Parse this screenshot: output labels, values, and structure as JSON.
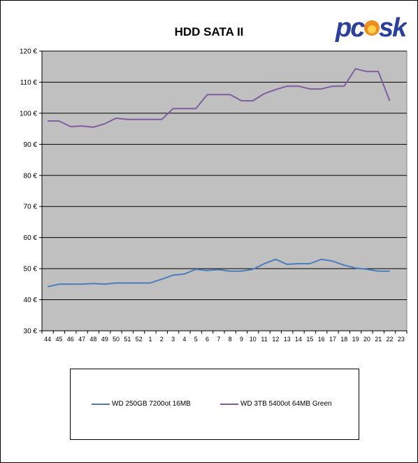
{
  "chart_data": {
    "type": "line",
    "title": "HDD SATA II",
    "categories": [
      "44",
      "45",
      "46",
      "47",
      "48",
      "49",
      "50",
      "51",
      "52",
      "1",
      "2",
      "3",
      "4",
      "5",
      "6",
      "7",
      "8",
      "9",
      "10",
      "11",
      "12",
      "13",
      "14",
      "15",
      "16",
      "17",
      "18",
      "19",
      "20",
      "21",
      "22",
      "23"
    ],
    "ylim": [
      30,
      120
    ],
    "yticks": [
      "30 €",
      "40 €",
      "50 €",
      "60 €",
      "70 €",
      "80 €",
      "90 €",
      "100 €",
      "110 €",
      "120 €"
    ],
    "grid": true,
    "legend_position": "bottom",
    "series": [
      {
        "name": "WD 250GB 7200ot 16MB",
        "color": "#4a7ebb",
        "values": [
          44.2,
          45.0,
          45.0,
          45.0,
          45.2,
          45.0,
          45.4,
          45.4,
          45.4,
          45.4,
          46.6,
          47.9,
          48.3,
          49.8,
          49.4,
          49.7,
          49.2,
          49.2,
          49.8,
          51.6,
          53.0,
          51.4,
          51.6,
          51.6,
          53.0,
          52.4,
          51.1,
          50.2,
          49.8,
          49.2,
          49.2,
          null
        ]
      },
      {
        "name": "WD 3TB 5400ot 64MB Green",
        "color": "#7d5fa0",
        "values": [
          97.5,
          97.5,
          95.7,
          95.9,
          95.5,
          96.6,
          98.4,
          98.0,
          98.0,
          98.0,
          98.0,
          101.5,
          101.5,
          101.5,
          106.0,
          106.0,
          106.0,
          104.0,
          104.0,
          106.3,
          107.6,
          108.7,
          108.7,
          107.8,
          107.8,
          108.7,
          108.7,
          114.3,
          113.4,
          113.4,
          104.0,
          null
        ]
      }
    ]
  },
  "logo": {
    "text": "pcosk",
    "color_primary": "#2b3f9e",
    "color_flame": "#f28b1e"
  },
  "colors": {
    "plot_background": "#c0c0c0",
    "gridline": "#000000"
  }
}
